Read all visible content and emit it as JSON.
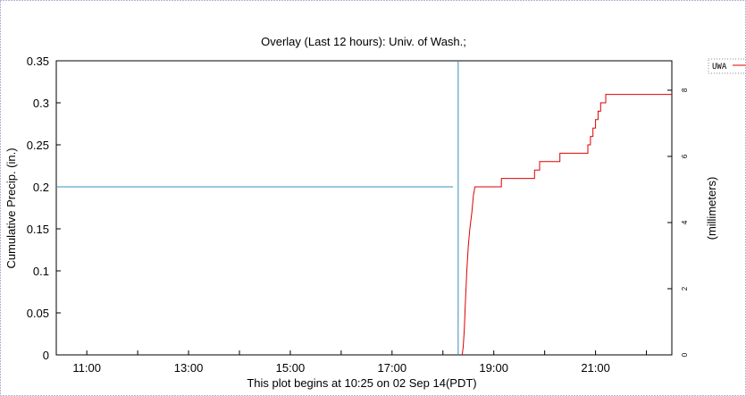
{
  "chart_data": {
    "type": "line",
    "title": "Overlay (Last 12 hours): Univ. of Wash.;",
    "ylabel": "Cumulative Precip. (in.)",
    "ylabel_right": "(millimeters)",
    "footer": "This plot begins at 10:25 on 02 Sep 14(PDT)",
    "ylim": [
      0,
      0.35
    ],
    "xlim_hours": [
      10.4,
      22.5
    ],
    "y_ticks": [
      "0",
      "0.05",
      "0.1",
      "0.15",
      "0.2",
      "0.25",
      "0.3",
      "0.35"
    ],
    "y_ticks_right": [
      "0",
      "2",
      "4",
      "6",
      "8"
    ],
    "x_ticks": [
      "11:00",
      "13:00",
      "15:00",
      "17:00",
      "19:00",
      "21:00"
    ],
    "grid": false,
    "legend": "top-right",
    "series": [
      {
        "name": "UWA",
        "color": "#dd0000",
        "points": [
          [
            18.38,
            0
          ],
          [
            18.4,
            0.01
          ],
          [
            18.42,
            0.03
          ],
          [
            18.44,
            0.06
          ],
          [
            18.47,
            0.1
          ],
          [
            18.5,
            0.13
          ],
          [
            18.53,
            0.15
          ],
          [
            18.57,
            0.17
          ],
          [
            18.6,
            0.19
          ],
          [
            18.63,
            0.2
          ],
          [
            19.15,
            0.2
          ],
          [
            19.15,
            0.21
          ],
          [
            19.8,
            0.21
          ],
          [
            19.8,
            0.22
          ],
          [
            19.9,
            0.22
          ],
          [
            19.9,
            0.23
          ],
          [
            20.3,
            0.23
          ],
          [
            20.3,
            0.24
          ],
          [
            20.85,
            0.24
          ],
          [
            20.85,
            0.25
          ],
          [
            20.9,
            0.25
          ],
          [
            20.9,
            0.26
          ],
          [
            20.95,
            0.26
          ],
          [
            20.95,
            0.27
          ],
          [
            21.0,
            0.27
          ],
          [
            21.0,
            0.28
          ],
          [
            21.05,
            0.28
          ],
          [
            21.05,
            0.29
          ],
          [
            21.1,
            0.29
          ],
          [
            21.1,
            0.3
          ],
          [
            21.2,
            0.3
          ],
          [
            21.2,
            0.31
          ],
          [
            22.5,
            0.31
          ]
        ]
      },
      {
        "color": "#3a8fb8",
        "points": [
          [
            10.4,
            0.2
          ],
          [
            18.2,
            0.2
          ]
        ]
      }
    ],
    "vertical_marker": {
      "x": 18.3,
      "color": "#3a8fb8"
    }
  }
}
